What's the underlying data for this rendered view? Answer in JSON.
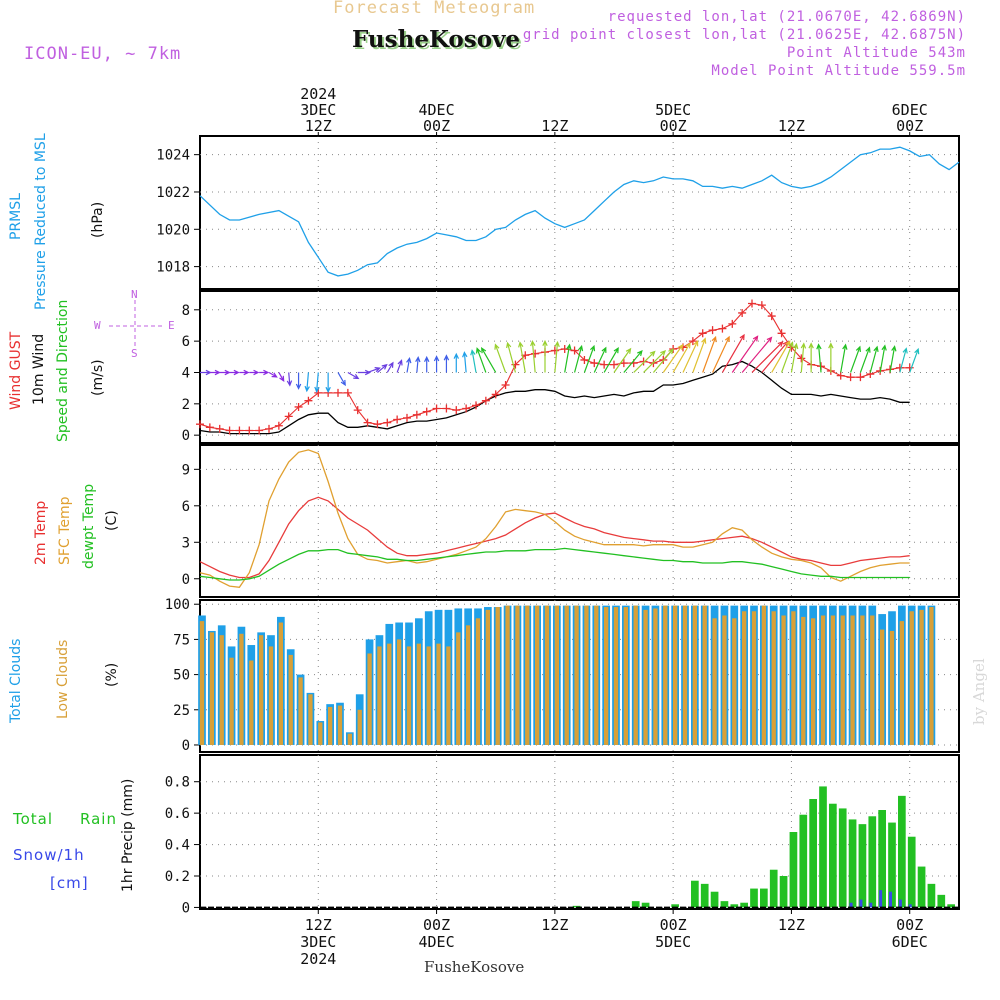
{
  "header": {
    "title": "Forecast Meteogram",
    "location": "FusheKosove",
    "model": "ICON-EU, ~ 7km",
    "requested": "requested lon,lat (21.0670E, 42.6869N)",
    "grid_point": "grid point closest lon,lat (21.0625E, 42.6875N)",
    "point_altitude": "Point Altitude 543m",
    "model_altitude": "Model Point Altitude 559.5m",
    "credit": "by Angel",
    "footer_location": "FusheKosove"
  },
  "colors": {
    "pressure": "#1fa0e8",
    "gust": "#e83030",
    "wind": "#000000",
    "temp": "#e83c3c",
    "sfc": "#e0a030",
    "dewpt": "#22c022",
    "total_cloud": "#1fa0e8",
    "low_cloud": "#d8a038",
    "rain": "#22c022",
    "snow": "#3848e8",
    "meta": "#c060e0",
    "title": "#e8c890"
  },
  "top_axis": [
    {
      "hour": 12,
      "lines": [
        "2024",
        "3DEC",
        "12Z"
      ]
    },
    {
      "hour": 24,
      "lines": [
        "4DEC",
        "00Z"
      ]
    },
    {
      "hour": 36,
      "lines": [
        "12Z"
      ]
    },
    {
      "hour": 48,
      "lines": [
        "5DEC",
        "00Z"
      ]
    },
    {
      "hour": 60,
      "lines": [
        "12Z"
      ]
    },
    {
      "hour": 72,
      "lines": [
        "6DEC",
        "00Z"
      ]
    }
  ],
  "bottom_axis": [
    {
      "hour": 12,
      "lines": [
        "12Z",
        "3DEC",
        "2024"
      ]
    },
    {
      "hour": 24,
      "lines": [
        "00Z",
        "4DEC"
      ]
    },
    {
      "hour": 36,
      "lines": [
        "12Z"
      ]
    },
    {
      "hour": 48,
      "lines": [
        "00Z",
        "5DEC"
      ]
    },
    {
      "hour": 60,
      "lines": [
        "12Z"
      ]
    },
    {
      "hour": 72,
      "lines": [
        "00Z",
        "6DEC"
      ]
    }
  ],
  "panel_labels": {
    "pressure": {
      "a": "PRMSL",
      "b": "Pressure Reduced to MSL",
      "unit": "(hPa)"
    },
    "wind": {
      "a": "Wind GUST",
      "b": "10m Wind",
      "c": "Speed and Direction",
      "unit": "(m/s)",
      "compass_n": "N",
      "compass_s": "S",
      "compass_w": "W",
      "compass_e": "E"
    },
    "temp": {
      "a": "2m Temp",
      "b": "SFC Temp",
      "c": "dewpt Temp",
      "unit": "(C)"
    },
    "cloud": {
      "a": "Total Clouds",
      "b": "Low Clouds",
      "unit": "(%)"
    },
    "precip": {
      "a": "Total",
      "b": "Rain",
      "c": "Snow/1h",
      "d": "[cm]",
      "unit": "1hr Precip (mm)"
    }
  },
  "chart_data": [
    {
      "type": "line",
      "name": "pressure",
      "ylabel": "(hPa)",
      "ylim": [
        1016.8,
        1025
      ],
      "yticks": [
        1018,
        1020,
        1022,
        1024
      ],
      "x_hours": [
        0,
        2,
        3,
        4,
        6,
        8,
        9,
        10,
        11,
        12,
        13,
        14,
        15,
        16,
        17,
        18,
        19,
        20,
        21,
        22,
        23,
        24,
        25,
        26,
        27,
        28,
        29,
        30,
        31,
        32,
        33,
        34,
        35,
        36,
        37,
        38,
        39,
        40,
        41,
        42,
        43,
        44,
        45,
        46,
        47,
        48,
        49,
        50,
        51,
        52,
        53,
        54,
        55,
        56,
        57,
        58,
        59,
        60,
        61,
        62,
        63,
        64,
        65,
        66,
        67,
        68,
        69,
        70,
        71,
        72,
        73,
        74,
        75,
        76,
        77
      ],
      "series": [
        {
          "values": [
            1021.8,
            1020.8,
            1020.5,
            1020.5,
            1020.8,
            1021.0,
            1020.7,
            1020.4,
            1019.3,
            1018.5,
            1017.7,
            1017.5,
            1017.6,
            1017.8,
            1018.1,
            1018.2,
            1018.7,
            1019.0,
            1019.2,
            1019.3,
            1019.5,
            1019.8,
            1019.7,
            1019.6,
            1019.4,
            1019.4,
            1019.6,
            1020.0,
            1020.1,
            1020.5,
            1020.8,
            1021.0,
            1020.6,
            1020.3,
            1020.1,
            1020.3,
            1020.5,
            1021.0,
            1021.5,
            1022.0,
            1022.4,
            1022.6,
            1022.5,
            1022.6,
            1022.8,
            1022.7,
            1022.7,
            1022.6,
            1022.3,
            1022.3,
            1022.2,
            1022.3,
            1022.2,
            1022.4,
            1022.6,
            1022.9,
            1022.5,
            1022.3,
            1022.2,
            1022.3,
            1022.5,
            1022.8,
            1023.2,
            1023.6,
            1024.0,
            1024.1,
            1024.3,
            1024.3,
            1024.4,
            1024.2,
            1023.9,
            1024.0,
            1023.5,
            1023.2,
            1023.6
          ]
        }
      ]
    },
    {
      "type": "line",
      "name": "wind",
      "ylabel": "(m/s)",
      "ylim": [
        -0.5,
        9.2
      ],
      "yticks": [
        0,
        2,
        4,
        6,
        8
      ],
      "x_start": 0,
      "series": [
        {
          "name": "Wind GUST",
          "values": [
            0.7,
            0.5,
            0.4,
            0.3,
            0.3,
            0.3,
            0.3,
            0.4,
            0.6,
            1.2,
            1.8,
            2.2,
            2.7,
            2.7,
            2.7,
            2.7,
            1.6,
            0.8,
            0.7,
            0.8,
            1.0,
            1.1,
            1.3,
            1.5,
            1.7,
            1.7,
            1.6,
            1.7,
            1.9,
            2.2,
            2.6,
            3.2,
            4.5,
            5.1,
            5.2,
            5.3,
            5.4,
            5.5,
            5.4,
            4.8,
            4.6,
            4.5,
            4.5,
            4.6,
            4.6,
            4.7,
            4.6,
            4.8,
            5.5,
            5.6,
            6.0,
            6.5,
            6.7,
            6.8,
            7.1,
            7.8,
            8.4,
            8.3,
            7.6,
            6.5,
            5.6,
            4.9,
            4.5,
            4.4,
            4.1,
            3.8,
            3.7,
            3.7,
            3.9,
            4.1,
            4.2,
            4.3,
            4.3
          ]
        },
        {
          "name": "10m Wind",
          "values": [
            0.3,
            0.2,
            0.2,
            0.1,
            0.1,
            0.1,
            0.1,
            0.1,
            0.2,
            0.6,
            1.0,
            1.3,
            1.4,
            1.4,
            0.8,
            0.5,
            0.5,
            0.6,
            0.5,
            0.4,
            0.6,
            0.8,
            0.9,
            0.9,
            1.0,
            1.1,
            1.3,
            1.5,
            1.8,
            2.2,
            2.5,
            2.7,
            2.8,
            2.8,
            2.9,
            2.9,
            2.8,
            2.5,
            2.4,
            2.5,
            2.4,
            2.5,
            2.6,
            2.5,
            2.7,
            2.8,
            2.8,
            3.2,
            3.2,
            3.3,
            3.5,
            3.7,
            3.9,
            4.4,
            4.5,
            4.7,
            4.4,
            4.0,
            3.5,
            3.0,
            2.6,
            2.6,
            2.6,
            2.5,
            2.6,
            2.5,
            2.4,
            2.3,
            2.3,
            2.4,
            2.3,
            2.1,
            2.1
          ]
        },
        {
          "name": "Speed and Direction",
          "direction_deg": [
            270,
            270,
            270,
            270,
            270,
            270,
            270,
            300,
            330,
            355,
            0,
            5,
            5,
            0,
            330,
            300,
            270,
            250,
            230,
            210,
            200,
            190,
            185,
            180,
            180,
            180,
            180,
            175,
            170,
            160,
            150,
            160,
            165,
            170,
            175,
            180,
            185,
            190,
            195,
            200,
            205,
            210,
            215,
            220,
            225,
            225,
            220,
            215,
            210,
            205,
            200,
            200,
            205,
            210,
            215,
            220,
            225,
            220,
            210,
            200,
            190,
            185,
            180,
            175,
            180,
            190,
            200,
            200,
            195,
            190,
            190,
            195,
            200
          ]
        }
      ]
    },
    {
      "type": "line",
      "name": "temperature",
      "ylabel": "(C)",
      "ylim": [
        -1.5,
        11
      ],
      "yticks": [
        0,
        3,
        6,
        9
      ],
      "x_start": 0,
      "series": [
        {
          "name": "2m Temp",
          "values": [
            1.4,
            1.0,
            0.6,
            0.3,
            0.1,
            0.1,
            0.4,
            1.5,
            3.0,
            4.5,
            5.6,
            6.4,
            6.7,
            6.4,
            5.7,
            5.0,
            4.5,
            4.0,
            3.3,
            2.6,
            2.1,
            1.9,
            1.9,
            2.0,
            2.1,
            2.3,
            2.5,
            2.7,
            2.9,
            3.1,
            3.3,
            3.6,
            4.1,
            4.6,
            5.0,
            5.3,
            5.4,
            5.0,
            4.6,
            4.3,
            4.1,
            3.8,
            3.6,
            3.4,
            3.3,
            3.2,
            3.1,
            3.1,
            3.0,
            3.0,
            3.0,
            3.1,
            3.2,
            3.3,
            3.4,
            3.5,
            3.3,
            3.0,
            2.6,
            2.2,
            1.8,
            1.6,
            1.5,
            1.3,
            1.1,
            1.1,
            1.3,
            1.5,
            1.6,
            1.7,
            1.8,
            1.8,
            1.9
          ]
        },
        {
          "name": "SFC Temp",
          "values": [
            0.5,
            0.3,
            -0.2,
            -0.6,
            -0.7,
            0.5,
            2.8,
            6.4,
            8.2,
            9.6,
            10.4,
            10.6,
            10.3,
            8.0,
            5.4,
            3.3,
            2.0,
            1.6,
            1.5,
            1.3,
            1.4,
            1.5,
            1.3,
            1.4,
            1.6,
            1.8,
            2.0,
            2.3,
            2.6,
            3.3,
            4.3,
            5.5,
            5.7,
            5.6,
            5.5,
            5.3,
            4.7,
            4.0,
            3.5,
            3.2,
            3.0,
            2.8,
            2.8,
            2.8,
            2.8,
            2.7,
            2.8,
            2.8,
            2.8,
            2.6,
            2.6,
            2.8,
            3.0,
            3.7,
            4.2,
            4.0,
            3.2,
            2.6,
            2.1,
            1.8,
            1.6,
            1.5,
            1.3,
            0.9,
            0.1,
            -0.2,
            0.2,
            0.6,
            0.9,
            1.1,
            1.2,
            1.3,
            1.3
          ]
        },
        {
          "name": "dewpt Temp",
          "values": [
            0.2,
            0.1,
            0.0,
            -0.1,
            -0.1,
            0.0,
            0.2,
            0.7,
            1.2,
            1.6,
            2.0,
            2.3,
            2.3,
            2.4,
            2.4,
            2.1,
            2.0,
            1.9,
            1.8,
            1.6,
            1.6,
            1.5,
            1.5,
            1.6,
            1.7,
            1.8,
            1.9,
            2.0,
            2.1,
            2.2,
            2.2,
            2.3,
            2.3,
            2.3,
            2.4,
            2.4,
            2.4,
            2.5,
            2.4,
            2.3,
            2.2,
            2.1,
            2.0,
            1.9,
            1.8,
            1.7,
            1.6,
            1.5,
            1.5,
            1.4,
            1.4,
            1.3,
            1.3,
            1.3,
            1.4,
            1.4,
            1.3,
            1.2,
            1.0,
            0.8,
            0.6,
            0.4,
            0.3,
            0.2,
            0.2,
            0.1,
            0.1,
            0.1,
            0.1,
            0.1,
            0.1,
            0.1,
            0.1
          ]
        }
      ]
    },
    {
      "type": "bar",
      "name": "clouds",
      "ylabel": "(%)",
      "ylim": [
        -5,
        103
      ],
      "yticks": [
        0,
        25,
        50,
        75,
        100
      ],
      "x_start": 0,
      "series": [
        {
          "name": "Total Clouds",
          "values": [
            92,
            81,
            85,
            70,
            84,
            71,
            80,
            78,
            91,
            68,
            50,
            37,
            17,
            29,
            30,
            9,
            36,
            75,
            78,
            86,
            87,
            87,
            90,
            95,
            96,
            96,
            97,
            97,
            97,
            98,
            98,
            99,
            99,
            99,
            99,
            99,
            99,
            99,
            99,
            99,
            99,
            99,
            99,
            99,
            99,
            99,
            99,
            99,
            99,
            99,
            99,
            99,
            99,
            99,
            99,
            99,
            99,
            99,
            99,
            99,
            99,
            99,
            99,
            99,
            99,
            99,
            99,
            99,
            99,
            93,
            95,
            99,
            99,
            99,
            99
          ]
        },
        {
          "name": "Low Clouds",
          "values": [
            88,
            80,
            78,
            62,
            79,
            60,
            78,
            70,
            87,
            64,
            48,
            36,
            16,
            27,
            28,
            8,
            25,
            65,
            70,
            72,
            75,
            70,
            72,
            70,
            72,
            70,
            80,
            85,
            90,
            96,
            98,
            99,
            99,
            99,
            99,
            99,
            99,
            99,
            99,
            99,
            99,
            98,
            98,
            98,
            99,
            96,
            97,
            99,
            99,
            99,
            99,
            99,
            90,
            92,
            90,
            95,
            95,
            99,
            95,
            92,
            95,
            91,
            90,
            92,
            92,
            92,
            92,
            92,
            92,
            82,
            81,
            88,
            95,
            96,
            98
          ]
        }
      ]
    },
    {
      "type": "bar",
      "name": "precipitation",
      "ylabel": "1hr Precip (mm)",
      "ylim": [
        -0.01,
        0.97
      ],
      "yticks": [
        0,
        0.2,
        0.4,
        0.6,
        0.8
      ],
      "x_start": 0,
      "series": [
        {
          "name": "Total Rain",
          "values": [
            0,
            0,
            0,
            0,
            0,
            0,
            0,
            0,
            0,
            0,
            0,
            0,
            0,
            0,
            0,
            0,
            0,
            0,
            0,
            0,
            0,
            0,
            0,
            0,
            0,
            0,
            0,
            0,
            0,
            0,
            0,
            0,
            0,
            0,
            0,
            0,
            0,
            0,
            0.01,
            0,
            0,
            0,
            0,
            0,
            0.04,
            0.03,
            0,
            0,
            0.02,
            0,
            0.17,
            0.15,
            0.1,
            0.04,
            0.02,
            0.03,
            0.12,
            0.12,
            0.24,
            0.2,
            0.48,
            0.59,
            0.69,
            0.77,
            0.66,
            0.63,
            0.56,
            0.53,
            0.58,
            0.62,
            0.54,
            0.71,
            0.45,
            0.26,
            0.15,
            0.08,
            0.02
          ]
        },
        {
          "name": "Snow/1h",
          "values": [
            0,
            0,
            0,
            0,
            0,
            0,
            0,
            0,
            0,
            0,
            0,
            0,
            0,
            0,
            0,
            0,
            0,
            0,
            0,
            0,
            0,
            0,
            0,
            0,
            0,
            0,
            0,
            0,
            0,
            0,
            0,
            0,
            0,
            0,
            0,
            0,
            0,
            0,
            0,
            0,
            0,
            0,
            0,
            0,
            0,
            0,
            0,
            0,
            0,
            0,
            0,
            0,
            0,
            0,
            0,
            0,
            0,
            0,
            0,
            0,
            0,
            0,
            0,
            0,
            0,
            0,
            0.03,
            0.05,
            0.03,
            0.11,
            0.1,
            0.05,
            0.02,
            0,
            0,
            0,
            0
          ]
        }
      ]
    }
  ]
}
